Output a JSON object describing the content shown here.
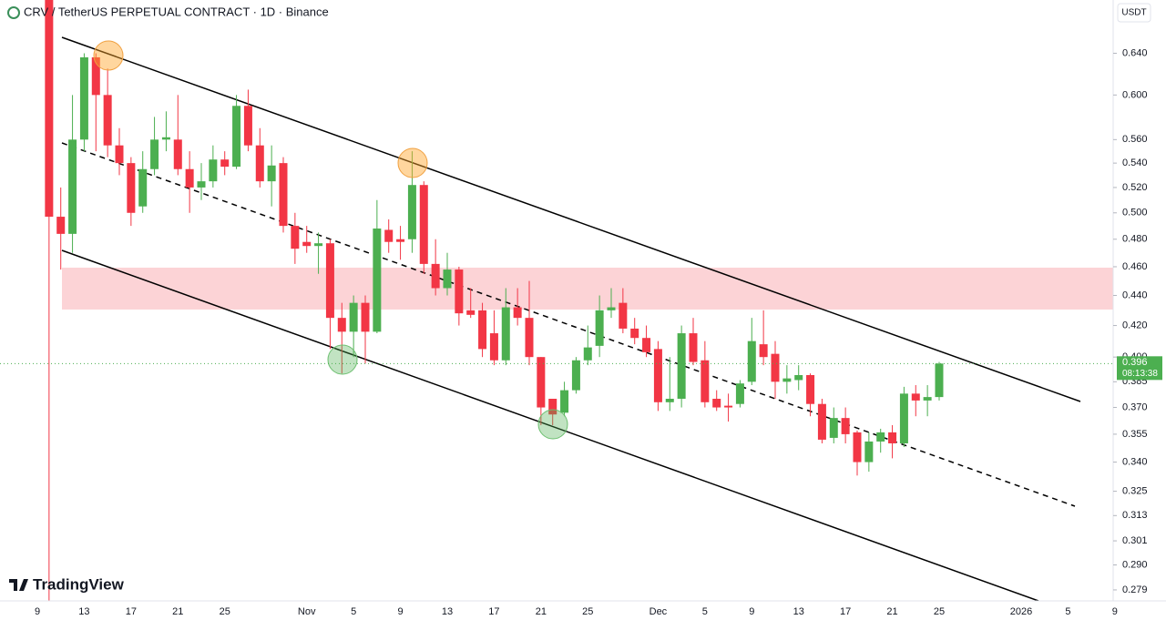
{
  "chart_data": {
    "type": "candlestick",
    "title": "CRV / TetherUS PERPETUAL CONTRACT · 1D · Binance",
    "unit": "USDT",
    "brand": "TradingView",
    "last_price": 0.396,
    "countdown": "08:13:38",
    "log_scale": true,
    "grid": false,
    "up_color": "#4caf50",
    "down_color": "#f23645",
    "categories": [
      "9",
      null,
      null,
      null,
      "13",
      null,
      null,
      null,
      "17",
      null,
      null,
      null,
      "21",
      null,
      null,
      null,
      "25",
      null,
      null,
      null,
      null,
      null,
      null,
      "Nov",
      null,
      null,
      null,
      "5",
      null,
      null,
      null,
      "9",
      null,
      null,
      null,
      "13",
      null,
      null,
      null,
      "17",
      null,
      null,
      null,
      "21",
      null,
      null,
      null,
      "25",
      null,
      null,
      null,
      null,
      null,
      "Dec",
      null,
      null,
      null,
      "5",
      null,
      null,
      null,
      "9",
      null,
      null,
      null,
      "13",
      null,
      null,
      null,
      "17",
      null,
      null,
      null,
      "21",
      null,
      null,
      null,
      "25",
      null,
      null,
      null,
      null,
      null,
      null,
      "2026",
      null,
      null,
      null,
      "5",
      null,
      null,
      null,
      "9"
    ],
    "open": [
      null,
      0.695,
      0.497,
      0.484,
      0.56,
      0.636,
      0.6,
      0.555,
      0.54,
      0.505,
      0.535,
      0.56,
      0.56,
      0.535,
      0.52,
      0.525,
      0.543,
      0.537,
      0.59,
      0.555,
      0.525,
      0.54,
      0.49,
      0.478,
      0.475,
      0.477,
      0.425,
      0.416,
      0.435,
      0.416,
      0.487,
      0.48,
      0.48,
      0.522,
      0.462,
      0.445,
      0.458,
      0.43,
      0.43,
      0.415,
      0.398,
      0.432,
      0.425,
      0.4,
      0.375,
      0.367,
      0.38,
      0.398,
      0.407,
      0.43,
      0.435,
      0.418,
      0.412,
      0.405,
      0.373,
      0.375,
      0.415,
      0.398,
      0.375,
      0.371,
      0.372,
      0.385,
      0.408,
      0.402,
      0.385,
      0.386,
      0.389,
      0.372,
      0.353,
      0.364,
      0.356,
      0.34,
      0.351,
      0.356,
      0.35,
      0.378,
      0.374,
      0.376,
      null,
      null,
      null,
      null,
      null,
      null,
      null,
      null,
      null,
      null,
      null,
      null,
      null,
      null,
      null
    ],
    "high": [
      null,
      0.7,
      0.52,
      0.6,
      0.64,
      0.64,
      0.625,
      0.57,
      0.545,
      0.55,
      0.58,
      0.585,
      0.6,
      0.55,
      0.54,
      0.555,
      0.55,
      0.6,
      0.605,
      0.57,
      0.555,
      0.545,
      0.5,
      0.49,
      0.485,
      0.48,
      0.435,
      0.44,
      0.44,
      0.51,
      0.495,
      0.49,
      0.55,
      0.525,
      0.48,
      0.47,
      0.46,
      0.445,
      0.435,
      0.43,
      0.445,
      0.445,
      0.45,
      0.4,
      0.375,
      0.385,
      0.4,
      0.42,
      0.44,
      0.445,
      0.445,
      0.425,
      0.42,
      0.41,
      0.4,
      0.42,
      0.425,
      0.41,
      0.38,
      0.378,
      0.386,
      0.425,
      0.43,
      0.41,
      0.395,
      0.395,
      0.39,
      0.375,
      0.37,
      0.37,
      0.357,
      0.356,
      0.358,
      0.36,
      0.382,
      0.383,
      0.383,
      0.397,
      null,
      null,
      null,
      null,
      null,
      null,
      null,
      null,
      null,
      null,
      null,
      null,
      null,
      null,
      null
    ],
    "low": [
      null,
      0.27,
      0.458,
      0.47,
      0.55,
      0.55,
      0.545,
      0.53,
      0.49,
      0.5,
      0.53,
      0.55,
      0.53,
      0.5,
      0.51,
      0.52,
      0.53,
      0.535,
      0.55,
      0.52,
      0.505,
      0.485,
      0.462,
      0.47,
      0.455,
      0.405,
      0.39,
      0.4,
      0.396,
      0.415,
      0.47,
      0.465,
      0.47,
      0.455,
      0.44,
      0.44,
      0.42,
      0.425,
      0.4,
      0.395,
      0.395,
      0.42,
      0.395,
      0.36,
      0.36,
      0.365,
      0.378,
      0.395,
      0.4,
      0.425,
      0.415,
      0.408,
      0.4,
      0.368,
      0.368,
      0.37,
      0.395,
      0.37,
      0.368,
      0.362,
      0.37,
      0.383,
      0.395,
      0.375,
      0.378,
      0.38,
      0.365,
      0.35,
      0.35,
      0.35,
      0.333,
      0.335,
      0.345,
      0.342,
      0.348,
      0.365,
      0.365,
      0.374,
      null,
      null,
      null,
      null,
      null,
      null,
      null,
      null,
      null,
      null,
      null,
      null,
      null,
      null,
      null
    ],
    "close": [
      null,
      0.497,
      0.484,
      0.56,
      0.636,
      0.6,
      0.555,
      0.54,
      0.5,
      0.535,
      0.56,
      0.562,
      0.535,
      0.52,
      0.525,
      0.543,
      0.537,
      0.59,
      0.555,
      0.525,
      0.538,
      0.49,
      0.473,
      0.475,
      0.477,
      0.425,
      0.416,
      0.435,
      0.416,
      0.488,
      0.478,
      0.478,
      0.522,
      0.462,
      0.445,
      0.458,
      0.428,
      0.427,
      0.405,
      0.398,
      0.432,
      0.425,
      0.4,
      0.37,
      0.366,
      0.38,
      0.398,
      0.406,
      0.43,
      0.432,
      0.418,
      0.412,
      0.403,
      0.373,
      0.375,
      0.415,
      0.397,
      0.373,
      0.37,
      0.37,
      0.384,
      0.41,
      0.4,
      0.385,
      0.387,
      0.389,
      0.372,
      0.352,
      0.364,
      0.355,
      0.34,
      0.351,
      0.356,
      0.35,
      0.378,
      0.374,
      0.376,
      0.396,
      null,
      null,
      null,
      null,
      null,
      null,
      null,
      null,
      null,
      null,
      null,
      null,
      null,
      null,
      null
    ],
    "ylim": [
      0.2743,
      0.695
    ],
    "yticks": [
      {
        "value": 0.64,
        "label": "0.640"
      },
      {
        "value": 0.6,
        "label": "0.600"
      },
      {
        "value": 0.56,
        "label": "0.560"
      },
      {
        "value": 0.54,
        "label": "0.540"
      },
      {
        "value": 0.52,
        "label": "0.520"
      },
      {
        "value": 0.5,
        "label": "0.500"
      },
      {
        "value": 0.48,
        "label": "0.480"
      },
      {
        "value": 0.46,
        "label": "0.460"
      },
      {
        "value": 0.44,
        "label": "0.440"
      },
      {
        "value": 0.42,
        "label": "0.420"
      },
      {
        "value": 0.4,
        "label": "0.400"
      },
      0.385,
      {
        "value": 0.37,
        "label": "0.370"
      },
      0.355,
      {
        "value": 0.34,
        "label": "0.340"
      },
      0.325,
      0.313,
      0.301,
      {
        "value": 0.29,
        "label": "0.290"
      },
      0.279
    ]
  }
}
